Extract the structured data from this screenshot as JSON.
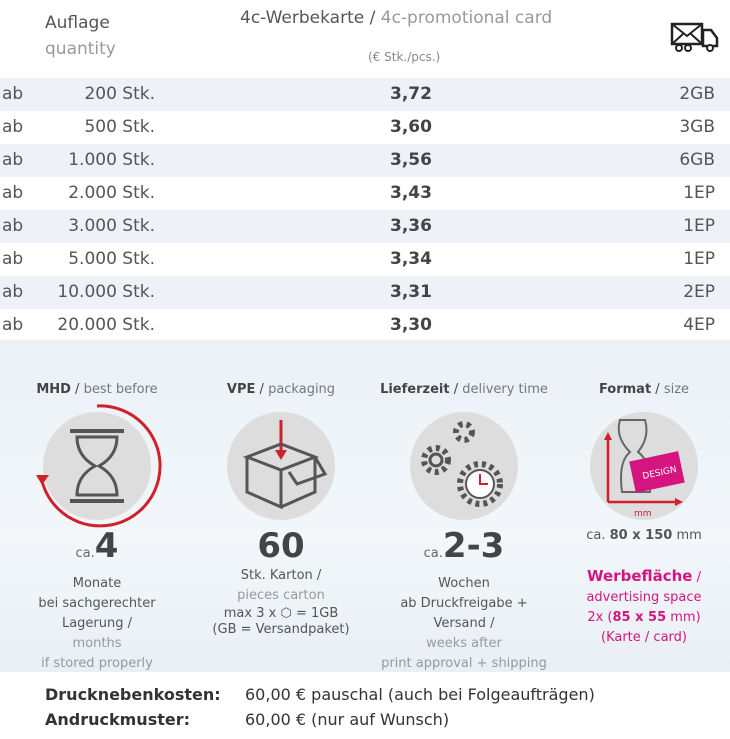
{
  "header": {
    "quantity_de": "Auflage",
    "quantity_en": "quantity",
    "title_de": "4c-Werbekarte",
    "title_en": "4c-promotional card",
    "unit": "(€ Stk./pcs.)",
    "shipping_icon": "envelope-truck-icon"
  },
  "rows": [
    {
      "prefix": "ab",
      "qty": "200 Stk.",
      "price": "3,72",
      "ship": "2GB"
    },
    {
      "prefix": "ab",
      "qty": "500 Stk.",
      "price": "3,60",
      "ship": "3GB"
    },
    {
      "prefix": "ab",
      "qty": "1.000 Stk.",
      "price": "3,56",
      "ship": "6GB"
    },
    {
      "prefix": "ab",
      "qty": "2.000 Stk.",
      "price": "3,43",
      "ship": "1EP"
    },
    {
      "prefix": "ab",
      "qty": "3.000 Stk.",
      "price": "3,36",
      "ship": "1EP"
    },
    {
      "prefix": "ab",
      "qty": "5.000 Stk.",
      "price": "3,34",
      "ship": "1EP"
    },
    {
      "prefix": "ab",
      "qty": "10.000 Stk.",
      "price": "3,31",
      "ship": "2EP"
    },
    {
      "prefix": "ab",
      "qty": "20.000 Stk.",
      "price": "3,30",
      "ship": "4EP"
    }
  ],
  "info": {
    "mhd": {
      "title_de": "MHD",
      "title_en": "best before",
      "ca": "ca.",
      "value": "4",
      "unit": "Monate",
      "line1": "bei sachgerechter Lagerung /",
      "line2": "months",
      "line3": "if stored properly"
    },
    "vpe": {
      "title_de": "VPE",
      "title_en": "packaging",
      "value": "60",
      "unit": "Stk. Karton /",
      "line1": "pieces carton",
      "line2": "max 3 x",
      "line2b": "= 1GB",
      "line3": "(GB = Versandpaket)"
    },
    "delivery": {
      "title_de": "Lieferzeit",
      "title_en": "delivery time",
      "ca": "ca.",
      "value": "2-3",
      "unit": "Wochen",
      "line1": "ab Druckfreigabe + Versand /",
      "line2": "weeks after",
      "line3": "print approval + shipping"
    },
    "format": {
      "title_de": "Format",
      "title_en": "size",
      "design": "DESIGN",
      "mm": "mm",
      "size_ca": "ca.",
      "size": "80 x 150",
      "size_unit": "mm",
      "adv_de": "Werbefläche",
      "adv_en": "advertising space",
      "adv_pre": "2x (",
      "adv_size": "85 x 55",
      "adv_post": "mm)",
      "adv_card": "(Karte / card)"
    }
  },
  "costs": [
    {
      "label": "Drucknebenkosten:",
      "value": "60,00 € pauschal (auch bei Folgeaufträgen)"
    },
    {
      "label": "Andruckmuster:",
      "value": "60,00 € (nur auf Wunsch)"
    }
  ],
  "colors": {
    "accent": "#d4157f",
    "red": "#d0202a",
    "row_shade": "#eef2f8"
  }
}
